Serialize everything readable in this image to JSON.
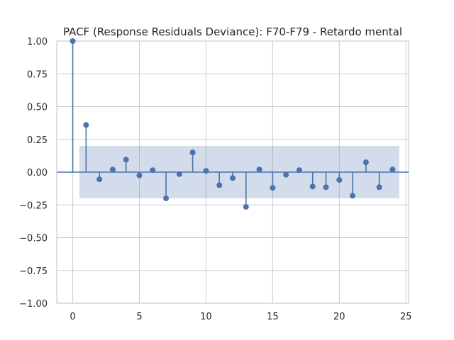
{
  "chart_data": {
    "type": "stem",
    "title": "PACF (Response Residuals Deviance): F70-F79 - Retardo mental",
    "xlabel": "",
    "ylabel": "",
    "xlim": [
      -1.2,
      25.2
    ],
    "ylim": [
      -1.0,
      1.0
    ],
    "x_ticks": [
      0,
      5,
      10,
      15,
      20,
      25
    ],
    "y_ticks": [
      1.0,
      0.75,
      0.5,
      0.25,
      0.0,
      -0.25,
      -0.5,
      -0.75,
      -1.0
    ],
    "x_tick_labels": [
      "0",
      "5",
      "10",
      "15",
      "20",
      "25"
    ],
    "y_tick_labels": [
      "1.00",
      "0.75",
      "0.50",
      "0.25",
      "0.00",
      "−0.25",
      "−0.50",
      "−0.75",
      "−1.00"
    ],
    "grid": true,
    "confidence_band": {
      "lower": -0.2,
      "upper": 0.2,
      "x_start": 0.5,
      "x_end": 24.5
    },
    "lags": [
      0,
      1,
      2,
      3,
      4,
      5,
      6,
      7,
      8,
      9,
      10,
      11,
      12,
      13,
      14,
      15,
      16,
      17,
      18,
      19,
      20,
      21,
      22,
      23,
      24
    ],
    "values": [
      1.0,
      0.36,
      -0.055,
      0.02,
      0.095,
      -0.025,
      0.015,
      -0.2,
      -0.015,
      0.15,
      0.01,
      -0.1,
      -0.045,
      -0.265,
      0.02,
      -0.12,
      -0.02,
      0.015,
      -0.11,
      -0.115,
      -0.06,
      -0.18,
      0.075,
      -0.115,
      0.02
    ],
    "colors": {
      "stem": "#4c72b0",
      "band": "#4c72b0",
      "grid": "#cccccc",
      "axis": "#cccccc"
    }
  }
}
